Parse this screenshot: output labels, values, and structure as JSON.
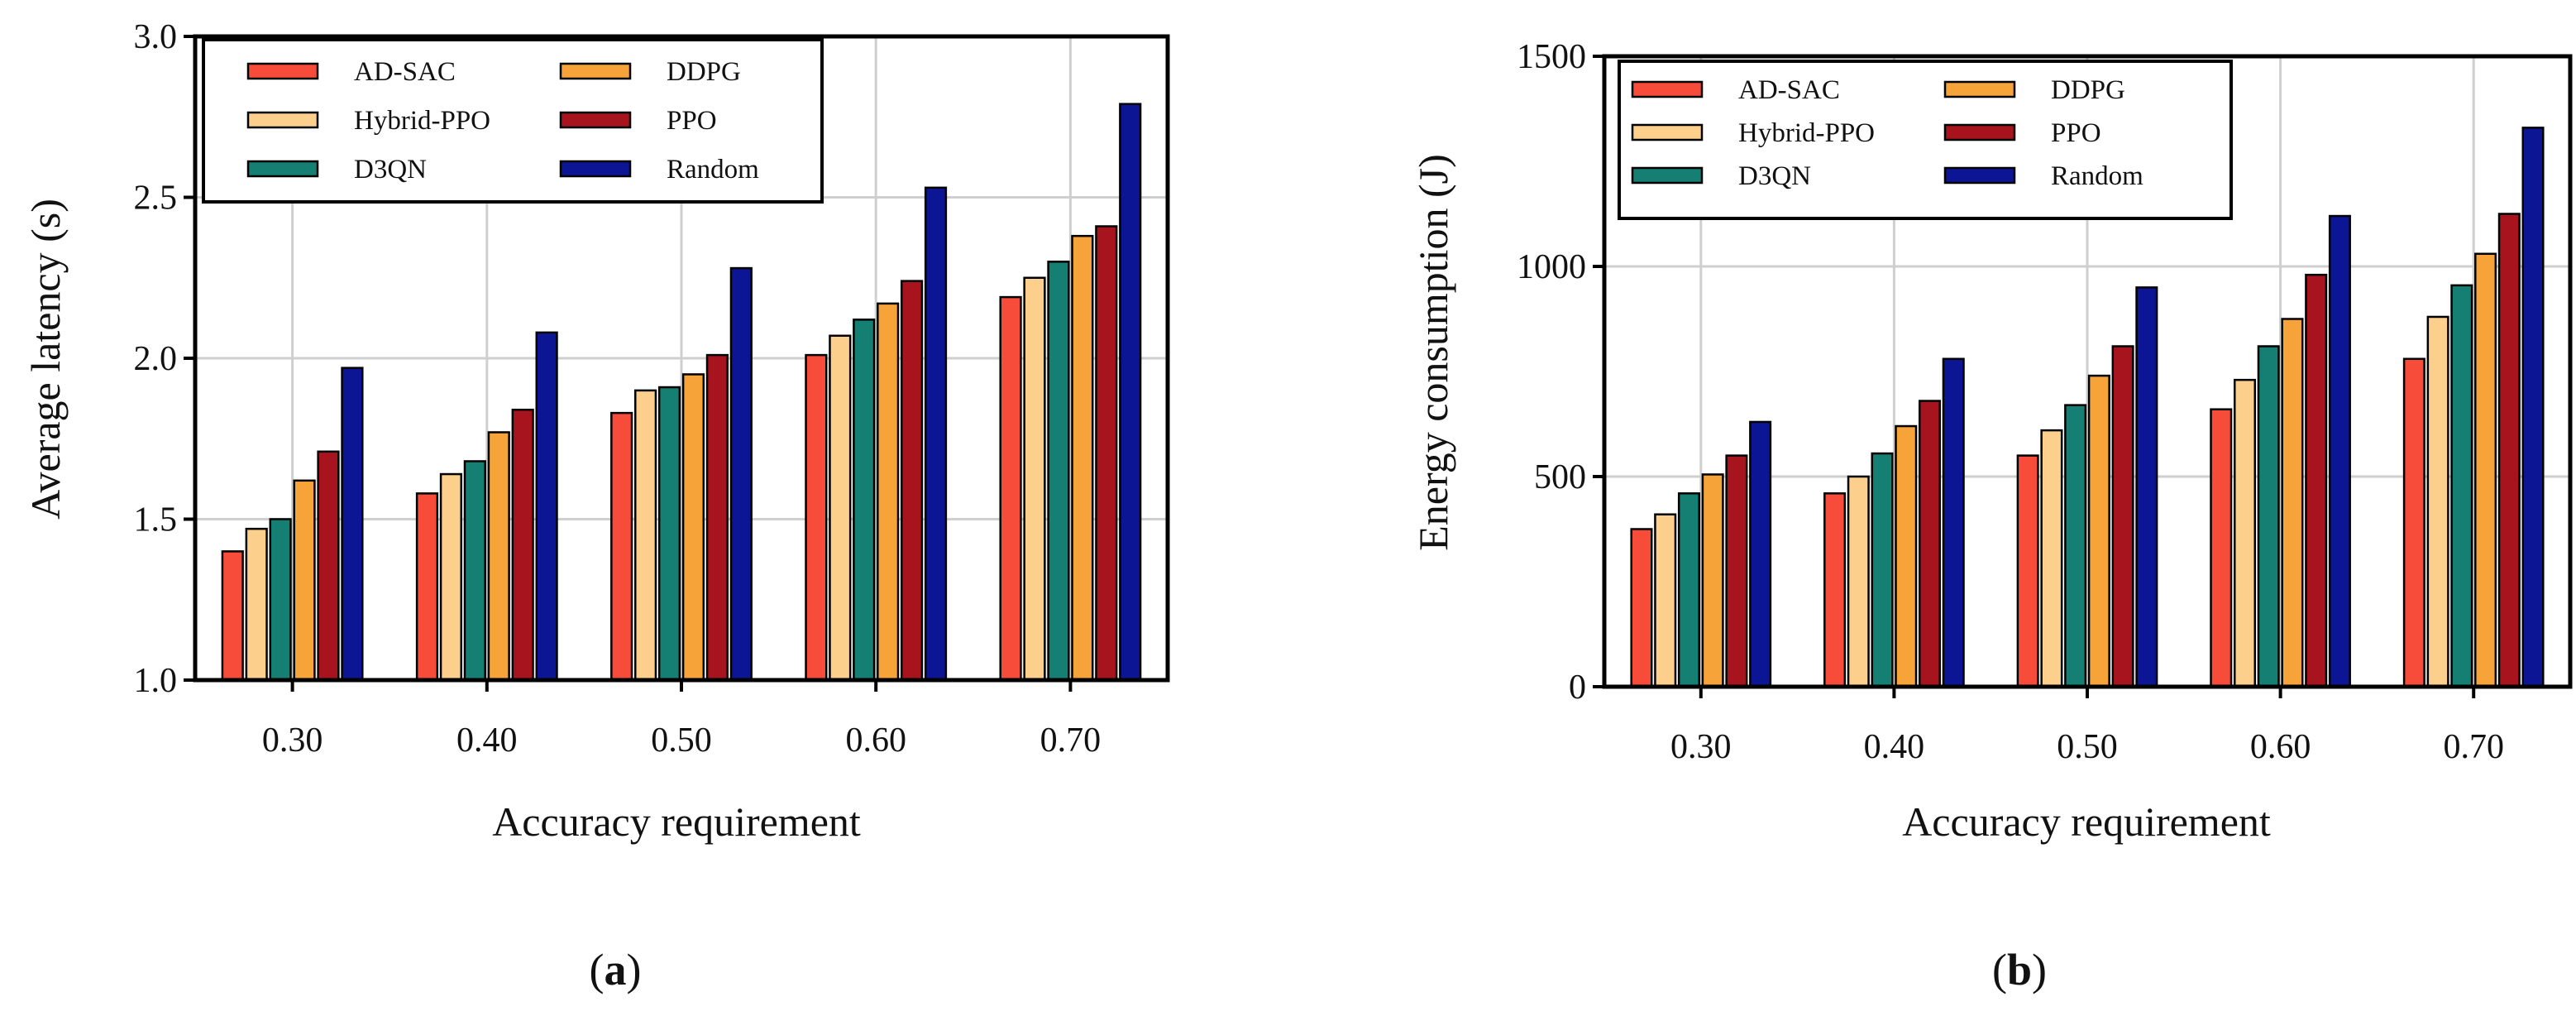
{
  "series_colors": [
    "#f84c3a",
    "#fdcf8c",
    "#147f72",
    "#f6a33a",
    "#a8141d",
    "#0c1694"
  ],
  "chart_data": [
    {
      "type": "bar",
      "panel": "a",
      "panel_label": [
        "(",
        "a",
        ")"
      ],
      "categories": [
        "0.30",
        "0.40",
        "0.50",
        "0.60",
        "0.70"
      ],
      "xlabel": "Accuracy requirement",
      "ylabel": "Average latency (s)",
      "ylim": [
        1.0,
        3.0
      ],
      "yticks": [
        "1.0",
        "1.5",
        "2.0",
        "2.5",
        "3.0"
      ],
      "grid": true,
      "legend_position": "top-left",
      "series": [
        {
          "name": "AD-SAC",
          "values": [
            1.4,
            1.58,
            1.83,
            2.01,
            2.19
          ]
        },
        {
          "name": "Hybrid-PPO",
          "values": [
            1.47,
            1.64,
            1.9,
            2.07,
            2.25
          ]
        },
        {
          "name": "D3QN",
          "values": [
            1.5,
            1.68,
            1.91,
            2.12,
            2.3
          ]
        },
        {
          "name": "DDPG",
          "values": [
            1.62,
            1.77,
            1.95,
            2.17,
            2.38
          ]
        },
        {
          "name": "PPO",
          "values": [
            1.71,
            1.84,
            2.01,
            2.24,
            2.41
          ]
        },
        {
          "name": "Random",
          "values": [
            1.97,
            2.08,
            2.28,
            2.53,
            2.79
          ]
        }
      ]
    },
    {
      "type": "bar",
      "panel": "b",
      "panel_label": [
        "(",
        "b",
        ")"
      ],
      "categories": [
        "0.30",
        "0.40",
        "0.50",
        "0.60",
        "0.70"
      ],
      "xlabel": "Accuracy requirement",
      "ylabel": "Energy consumption (J)",
      "ylim": [
        0,
        1500
      ],
      "yticks": [
        "0",
        "500",
        "1000",
        "1500"
      ],
      "grid": true,
      "legend_position": "top-left",
      "series": [
        {
          "name": "AD-SAC",
          "values": [
            375,
            460,
            550,
            660,
            780
          ]
        },
        {
          "name": "Hybrid-PPO",
          "values": [
            410,
            500,
            610,
            730,
            880
          ]
        },
        {
          "name": "D3QN",
          "values": [
            460,
            555,
            670,
            810,
            955
          ]
        },
        {
          "name": "DDPG",
          "values": [
            505,
            620,
            740,
            875,
            1030
          ]
        },
        {
          "name": "PPO",
          "values": [
            550,
            680,
            810,
            980,
            1125
          ]
        },
        {
          "name": "Random",
          "values": [
            630,
            780,
            950,
            1120,
            1330
          ]
        }
      ]
    }
  ]
}
